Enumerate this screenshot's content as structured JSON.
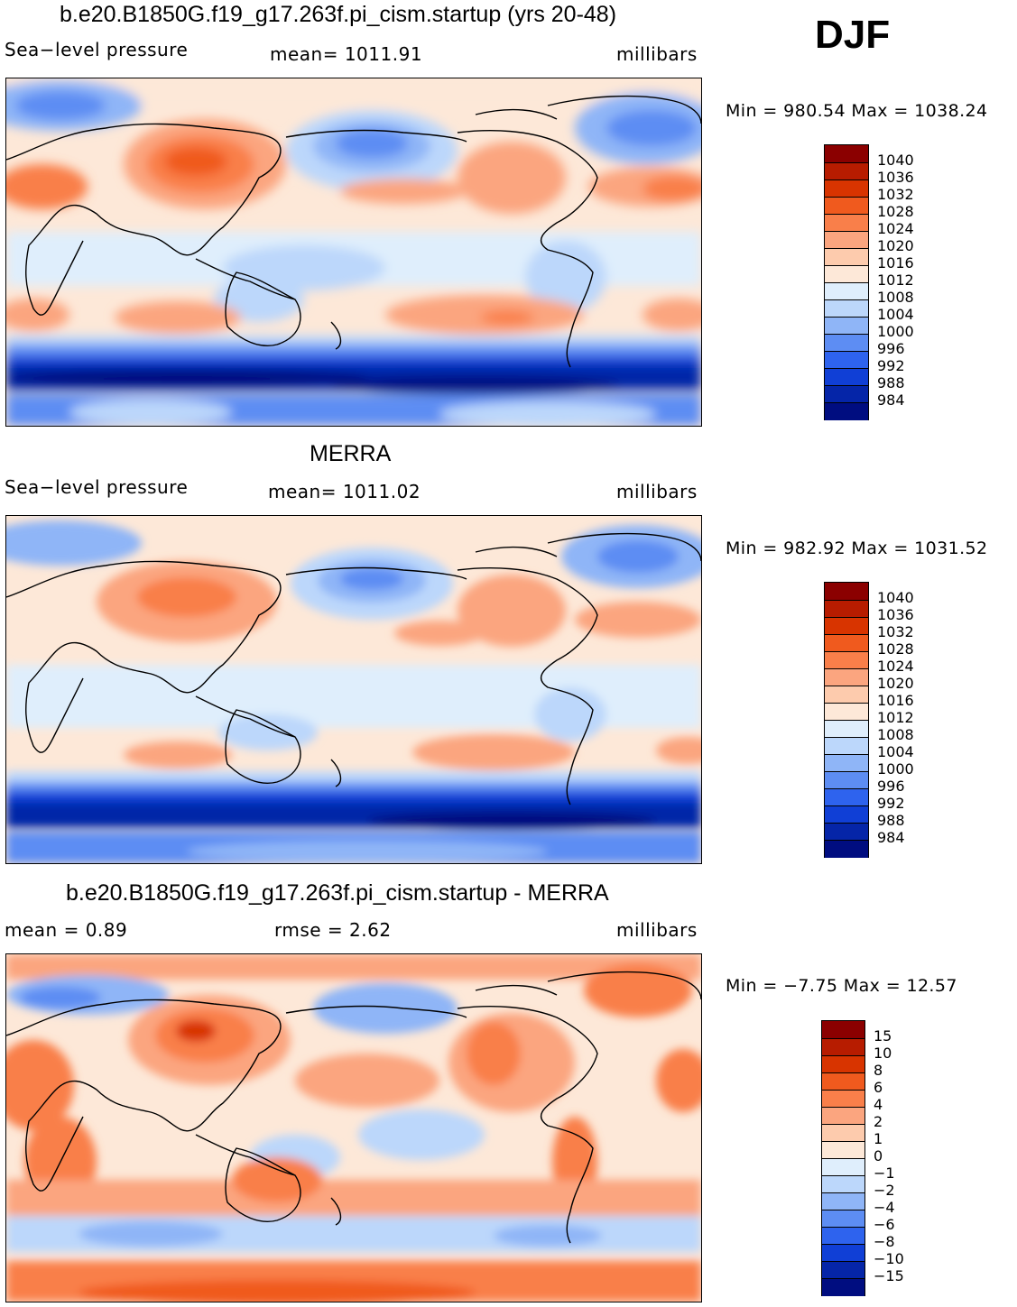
{
  "season": "DJF",
  "panels": [
    {
      "id": "model",
      "title": "b.e20.B1850G.f19_g17.263f.pi_cism.startup (yrs 20-48)",
      "left_label": "Sea−level pressure",
      "stat_text": "mean=  1011.91",
      "units": "millibars",
      "minmax": "Min  =  980.54  Max  =  1038.24",
      "colorbar": {
        "labels": [
          "1040",
          "1036",
          "1032",
          "1028",
          "1024",
          "1020",
          "1016",
          "1012",
          "1008",
          "1004",
          "1000",
          "996",
          "992",
          "988",
          "984"
        ],
        "colors": [
          "#8b0000",
          "#b71c00",
          "#d83400",
          "#f05a1e",
          "#f97f4a",
          "#fba57f",
          "#fdcbad",
          "#fde8d8",
          "#dfeefc",
          "#bcd7fb",
          "#8fb5f7",
          "#5d8df3",
          "#2e63ee",
          "#103fd6",
          "#0525a8",
          "#000d80"
        ]
      }
    },
    {
      "id": "obs",
      "title": "MERRA",
      "left_label": "Sea−level pressure",
      "stat_text": "mean=  1011.02",
      "units": "millibars",
      "minmax": "Min  =  982.92  Max  =  1031.52",
      "colorbar": {
        "labels": [
          "1040",
          "1036",
          "1032",
          "1028",
          "1024",
          "1020",
          "1016",
          "1012",
          "1008",
          "1004",
          "1000",
          "996",
          "992",
          "988",
          "984"
        ],
        "colors": [
          "#8b0000",
          "#b71c00",
          "#d83400",
          "#f05a1e",
          "#f97f4a",
          "#fba57f",
          "#fdcbad",
          "#fde8d8",
          "#dfeefc",
          "#bcd7fb",
          "#8fb5f7",
          "#5d8df3",
          "#2e63ee",
          "#103fd6",
          "#0525a8",
          "#000d80"
        ]
      }
    },
    {
      "id": "diff",
      "title": "b.e20.B1850G.f19_g17.263f.pi_cism.startup - MERRA",
      "left_label": "mean =     0.89",
      "stat_text": "rmse =     2.62",
      "units": "millibars",
      "minmax": "Min  =    −7.75  Max  =     12.57",
      "colorbar": {
        "labels": [
          "15",
          "10",
          "8",
          "6",
          "4",
          "2",
          "1",
          "0",
          "−1",
          "−2",
          "−4",
          "−6",
          "−8",
          "−10",
          "−15"
        ],
        "colors": [
          "#8b0000",
          "#b71c00",
          "#d83400",
          "#f05a1e",
          "#f97f4a",
          "#fba57f",
          "#fdcbad",
          "#fde8d8",
          "#dfeefc",
          "#bcd7fb",
          "#8fb5f7",
          "#5d8df3",
          "#2e63ee",
          "#103fd6",
          "#0525a8",
          "#000d80"
        ]
      }
    }
  ]
}
